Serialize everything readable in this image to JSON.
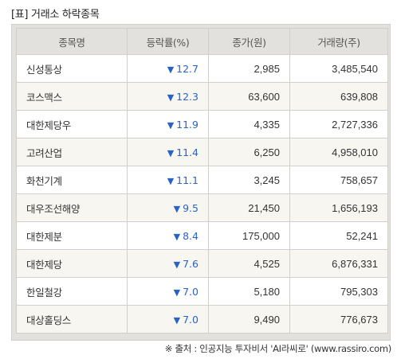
{
  "title": "[표] 거래소 하락종목",
  "table": {
    "headers": [
      "종목명",
      "등락률(%)",
      "종가(원)",
      "거래량(주)"
    ],
    "rows": [
      {
        "name": "신성통상",
        "arrow": "▼",
        "change": "12.7",
        "price": "2,985",
        "volume": "3,485,540"
      },
      {
        "name": "코스맥스",
        "arrow": "▼",
        "change": "12.3",
        "price": "63,600",
        "volume": "639,808"
      },
      {
        "name": "대한제당우",
        "arrow": "▼",
        "change": "11.9",
        "price": "4,335",
        "volume": "2,727,336"
      },
      {
        "name": "고려산업",
        "arrow": "▼",
        "change": "11.4",
        "price": "6,250",
        "volume": "4,958,010"
      },
      {
        "name": "화천기계",
        "arrow": "▼",
        "change": "11.1",
        "price": "3,245",
        "volume": "758,657"
      },
      {
        "name": "대우조선해양",
        "arrow": "▼",
        "change": "9.5",
        "price": "21,450",
        "volume": "1,656,193"
      },
      {
        "name": "대한제분",
        "arrow": "▼",
        "change": "8.4",
        "price": "175,000",
        "volume": "52,241"
      },
      {
        "name": "대한제당",
        "arrow": "▼",
        "change": "7.6",
        "price": "4,525",
        "volume": "6,876,331"
      },
      {
        "name": "한일철강",
        "arrow": "▼",
        "change": "7.0",
        "price": "5,180",
        "volume": "795,303"
      },
      {
        "name": "대상홀딩스",
        "arrow": "▼",
        "change": "7.0",
        "price": "9,490",
        "volume": "776,673"
      }
    ]
  },
  "colors": {
    "down": "#2a63c6",
    "header_bg": "#e3e1dd",
    "row_alt_bg": "#f7f6f1"
  },
  "source": "※ 출처 : 인공지능 투자비서 'AI라씨로' (www.rassiro.com)"
}
